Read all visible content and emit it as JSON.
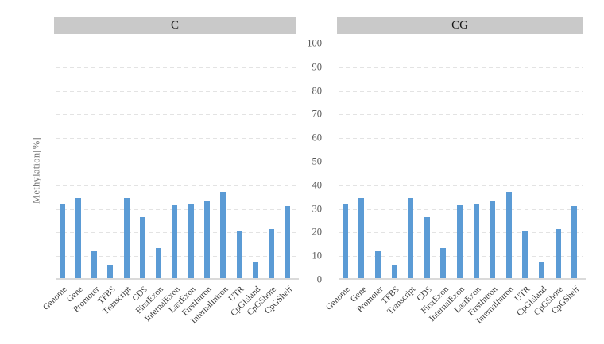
{
  "figure": {
    "ylabel": "Methylation[%]"
  },
  "chart_data": {
    "type": "bar",
    "title": "",
    "xlabel": "",
    "ylabel": "Methylation[%]",
    "ylim": [
      0,
      100
    ],
    "yticks": [
      0,
      10,
      20,
      30,
      40,
      50,
      60,
      70,
      80,
      90,
      100
    ],
    "grid": "horizontal-dashed",
    "legend": "none",
    "layout": "two-panel-faceted, shared central y-axis",
    "bar_color": "#5b9bd5",
    "panel_header_bg": "#c9c9c9",
    "categories": [
      "Genome",
      "Gene",
      "Promoter",
      "TFBS",
      "Transcript",
      "CDS",
      "FirstExon",
      "InternalExon",
      "LastExon",
      "FirstIntron",
      "InternalIntron",
      "UTR",
      "CpGIsland",
      "CpGShore",
      "CpGShelf"
    ],
    "series": [
      {
        "name": "C",
        "values": [
          32,
          34.2,
          11.7,
          6.1,
          34.2,
          26.2,
          13.1,
          31.4,
          32,
          33,
          37,
          20.2,
          7,
          21.2,
          31
        ]
      },
      {
        "name": "CG",
        "values": [
          32,
          34.2,
          11.7,
          6.1,
          34.2,
          26.2,
          13.1,
          31.4,
          32,
          33,
          37,
          20.2,
          7,
          21.2,
          31
        ]
      }
    ]
  }
}
